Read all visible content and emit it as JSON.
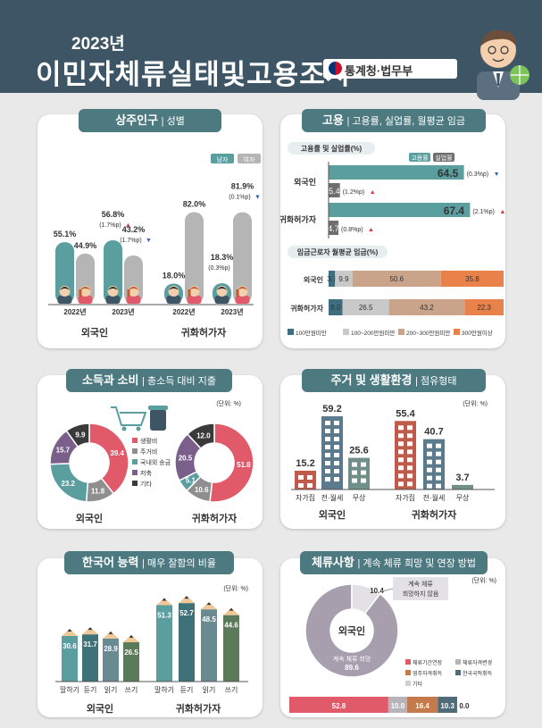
{
  "header": {
    "year": "2023년",
    "title": "이민자체류실태및고용조사",
    "agency": "통계청·법무부"
  },
  "p1": {
    "title": "상주인구",
    "subtitle": "| 성별",
    "legend": [
      "남자",
      "여자"
    ],
    "groups": [
      "외국인",
      "귀화허가자"
    ],
    "years": [
      "2022년",
      "2023년",
      "2022년",
      "2023년"
    ],
    "colors": {
      "male": "#5b9ea0",
      "female": "#b5b5b5"
    },
    "chart_data": {
      "type": "bar",
      "series": [
        {
          "name": "남자",
          "values": [
            55.1,
            56.8,
            18.0,
            18.3
          ],
          "labels": [
            "55.1%",
            "56.8%",
            "18.0%",
            "18.3%"
          ],
          "notes": [
            "",
            "(1.7%p",
            "",
            "(0.3%p"
          ],
          "arrows": [
            "",
            "▲",
            "",
            "▲"
          ]
        },
        {
          "name": "여자",
          "values": [
            44.9,
            43.2,
            82.0,
            81.9
          ],
          "labels": [
            "44.9%",
            "43.2%",
            "82.0%",
            "81.9%"
          ],
          "notes": [
            "",
            "(1.7%p",
            "",
            "(0.1%p"
          ],
          "arrows": [
            "",
            "▼",
            "",
            "▼"
          ]
        }
      ],
      "ylim": [
        0,
        100
      ]
    }
  },
  "p2": {
    "title": "고용",
    "subtitle": "| 고용률, 실업률, 월평균 임금",
    "sub1": "고용률 및 실업률(%)",
    "sub2": "임금근로자 월평균 임금(%)",
    "legend1": [
      "고용률",
      "실업률"
    ],
    "rows": [
      "외국인",
      "귀화허가자"
    ],
    "colors": {
      "emp": "#5b9ea0",
      "unemp": "#6e6e6e",
      "w1": "#3f6f7f",
      "w2": "#c9c9c9",
      "w3": "#c9a48a",
      "w4": "#e8824a"
    },
    "chart_data": [
      {
        "type": "bar",
        "categories": [
          "외국인",
          "귀화허가자"
        ],
        "series": [
          {
            "name": "고용률",
            "values": [
              64.5,
              67.4
            ],
            "labels": [
              "64.5",
              "67.4"
            ],
            "notes": [
              "(0.3%p",
              "(2.1%p"
            ],
            "arrows": [
              "▼",
              "▲"
            ]
          },
          {
            "name": "실업률",
            "values": [
              5.4,
              4.7
            ],
            "labels": [
              "5.4",
              "4.7"
            ],
            "notes": [
              "(1.2%p",
              "(0.8%p"
            ],
            "arrows": [
              "▲",
              "▲"
            ]
          }
        ]
      },
      {
        "type": "bar",
        "categories": [
          "외국인",
          "귀화허가자"
        ],
        "series": [
          {
            "name": "100만원미만",
            "values": [
              3.7,
              8.0
            ],
            "labels": [
              "3.7",
              "8.0"
            ]
          },
          {
            "name": "100~200만원미만",
            "values": [
              9.9,
              26.5
            ],
            "labels": [
              "9.9",
              "26.5"
            ]
          },
          {
            "name": "200~300만원미만",
            "values": [
              50.6,
              43.2
            ],
            "labels": [
              "50.6",
              "43.2"
            ]
          },
          {
            "name": "300만원이상",
            "values": [
              35.8,
              22.3
            ],
            "labels": [
              "35.8",
              "22.3"
            ]
          }
        ]
      }
    ]
  },
  "p3": {
    "title": "소득과 소비",
    "subtitle": "| 총소득 대비 지출",
    "unit": "(단위: %)",
    "groups": [
      "외국인",
      "귀화허가자"
    ],
    "legend": [
      "생활비",
      "주거비",
      "국내외 송금",
      "저축",
      "기타"
    ],
    "colors": [
      "#e05a6a",
      "#8f8f8f",
      "#5b9ea0",
      "#7a5f8a",
      "#3a3a3a"
    ],
    "chart_data": [
      {
        "type": "pie",
        "name": "외국인",
        "labels": [
          "생활비",
          "주거비",
          "국내외 송금",
          "저축",
          "기타"
        ],
        "values": [
          39.4,
          11.8,
          23.2,
          15.7,
          9.9
        ],
        "value_labels": [
          "39.4",
          "11.8",
          "23.2",
          "15.7",
          "9.9"
        ]
      },
      {
        "type": "pie",
        "name": "귀화허가자",
        "labels": [
          "생활비",
          "주거비",
          "국내외 송금",
          "저축",
          "기타"
        ],
        "values": [
          51.8,
          10.6,
          5.1,
          20.5,
          12.0
        ],
        "value_labels": [
          "51.8",
          "10.6",
          "5.1",
          "20.5",
          "12.0"
        ]
      }
    ]
  },
  "p4": {
    "title": "주거 및 생활환경",
    "subtitle": "| 점유형태",
    "unit": "(단위: %)",
    "groups": [
      "외국인",
      "귀화허가자"
    ],
    "chart_data": {
      "type": "bar",
      "categories": [
        "자가집",
        "전·월세",
        "무상",
        "자가집",
        "전·월세",
        "무상"
      ],
      "values": [
        15.2,
        59.2,
        25.6,
        55.4,
        40.7,
        3.7
      ],
      "labels": [
        "15.2",
        "59.2",
        "25.6",
        "55.4",
        "40.7",
        "3.7"
      ],
      "ylim": [
        0,
        65
      ]
    }
  },
  "p5": {
    "title": "한국어 능력",
    "subtitle": "| 매우 잘함의 비율",
    "unit": "(단위: %)",
    "groups": [
      "외국인",
      "귀화허가자"
    ],
    "colors": [
      "#5b9ea0",
      "#3f7278",
      "#6a8a92",
      "#5b7a5a"
    ],
    "chart_data": {
      "type": "bar",
      "categories": [
        "말하기",
        "듣기",
        "읽기",
        "쓰기",
        "말하기",
        "듣기",
        "읽기",
        "쓰기"
      ],
      "values": [
        30.6,
        31.7,
        28.9,
        26.5,
        51.3,
        52.7,
        48.5,
        44.6
      ],
      "labels": [
        "30.6",
        "31.7",
        "28.9",
        "26.5",
        "51.3",
        "52.7",
        "48.5",
        "44.6"
      ],
      "ylim": [
        0,
        60
      ]
    }
  },
  "p6": {
    "title": "체류사항",
    "subtitle": "| 계속 체류 희망 및 연장 방법",
    "unit": "(단위: %)",
    "center": "외국인",
    "callout": "계속 체류\n희망하지 않음",
    "inner_label": "계속 체류 희망",
    "legend": [
      "체류기간연장",
      "체류자격변경",
      "영주자격취득",
      "한국국적취득",
      "기타"
    ],
    "colors": {
      "stay": "#a89fae",
      "leave": "#e4e1e6",
      "s1": "#e05a6a",
      "s2": "#b8b3ba",
      "s3": "#c47a4a",
      "s4": "#4f6b78",
      "s5": "#cfcfcf"
    },
    "chart_data": [
      {
        "type": "pie",
        "labels": [
          "계속 체류 희망",
          "계속 체류 희망하지 않음"
        ],
        "values": [
          89.6,
          10.4
        ],
        "value_labels": [
          "89.6",
          "10.4"
        ]
      },
      {
        "type": "bar",
        "series": [
          {
            "name": "체류기간연장",
            "values": [
              52.8
            ],
            "labels": [
              "52.8"
            ]
          },
          {
            "name": "체류자격변경",
            "values": [
              10.0
            ],
            "labels": [
              "10.0"
            ]
          },
          {
            "name": "영주자격취득",
            "values": [
              16.4
            ],
            "labels": [
              "16.4"
            ]
          },
          {
            "name": "한국국적취득",
            "values": [
              10.3
            ],
            "labels": [
              "10.3"
            ]
          },
          {
            "name": "기타",
            "values": [
              0.0
            ],
            "labels": [
              "0.0"
            ]
          }
        ]
      }
    ]
  }
}
